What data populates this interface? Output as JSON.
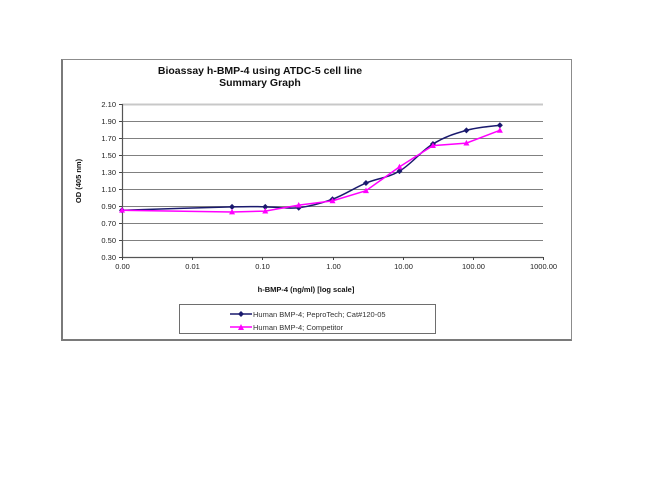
{
  "chart_data": {
    "type": "line",
    "title": "Bioassay h-BMP-4 using ATDC-5 cell line",
    "subtitle": "Summary Graph",
    "xlabel": "h-BMP-4 (ng/ml) [log scale]",
    "ylabel": "OD (405 nm)",
    "xscale": "log",
    "xlim": [
      0.001,
      1000
    ],
    "ylim": [
      0.3,
      2.1
    ],
    "x_tick_labels": [
      "0.00",
      "0.01",
      "0.10",
      "1.00",
      "10.00",
      "100.00",
      "1000.00"
    ],
    "x_tick_values": [
      0.001,
      0.01,
      0.1,
      1,
      10,
      100,
      1000
    ],
    "y_tick_labels": [
      "0.30",
      "0.50",
      "0.70",
      "0.90",
      "1.10",
      "1.30",
      "1.50",
      "1.70",
      "1.90",
      "2.10"
    ],
    "y_tick_values": [
      0.3,
      0.5,
      0.7,
      0.9,
      1.1,
      1.3,
      1.5,
      1.7,
      1.9,
      2.1
    ],
    "grid": "horizontal",
    "legend_position": "bottom",
    "x": [
      0.001,
      0.037,
      0.11,
      0.33,
      1.0,
      3.0,
      9.0,
      27.0,
      81.0,
      243.0
    ],
    "series": [
      {
        "name": "Human BMP-4; PeproTech; Cat#120-05",
        "color": "#1a1a6e",
        "marker": "diamond",
        "values": [
          0.85,
          0.89,
          0.89,
          0.88,
          0.98,
          1.17,
          1.31,
          1.63,
          1.79,
          1.85
        ]
      },
      {
        "name": "Human BMP-4; Competitor",
        "color": "#ff00ff",
        "marker": "triangle",
        "values": [
          0.85,
          0.83,
          0.84,
          0.91,
          0.96,
          1.08,
          1.36,
          1.61,
          1.64,
          1.79
        ]
      }
    ]
  },
  "colors": {
    "frame_border": "#8c8c8c",
    "gridline": "#808080",
    "top_gridline": "#c8c8c8"
  }
}
